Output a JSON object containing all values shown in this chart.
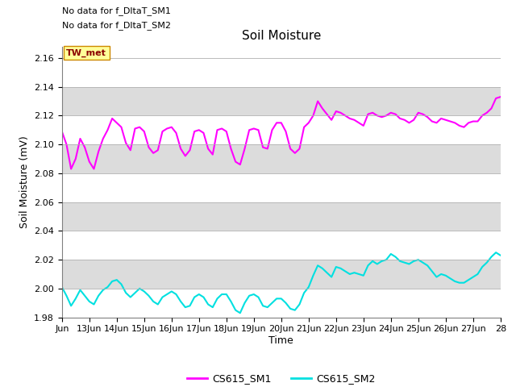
{
  "title": "Soil Moisture",
  "ylabel": "Soil Moisture (mV)",
  "xlabel": "Time",
  "ylim": [
    1.98,
    2.168
  ],
  "yticks": [
    1.98,
    2.0,
    2.02,
    2.04,
    2.06,
    2.08,
    2.1,
    2.12,
    2.14,
    2.16
  ],
  "xtick_labels": [
    "Jun",
    "13Jun",
    "14Jun",
    "15Jun",
    "16Jun",
    "17Jun",
    "18Jun",
    "19Jun",
    "20Jun",
    "21Jun",
    "22Jun",
    "23Jun",
    "24Jun",
    "25Jun",
    "26Jun",
    "27Jun",
    "28"
  ],
  "color_sm1": "#ff00ff",
  "color_sm2": "#00e0e0",
  "background_color": "#ffffff",
  "band_color": "#dcdcdc",
  "annotation1": "No data for f_DltaT_SM1",
  "annotation2": "No data for f_DltaT_SM2",
  "tw_met_label": "TW_met",
  "legend_sm1": "CS615_SM1",
  "legend_sm2": "CS615_SM2",
  "sm1_data": [
    2.109,
    2.1,
    2.083,
    2.09,
    2.104,
    2.098,
    2.088,
    2.083,
    2.095,
    2.104,
    2.11,
    2.118,
    2.115,
    2.112,
    2.101,
    2.096,
    2.111,
    2.112,
    2.109,
    2.098,
    2.094,
    2.096,
    2.109,
    2.111,
    2.112,
    2.108,
    2.097,
    2.092,
    2.096,
    2.109,
    2.11,
    2.108,
    2.097,
    2.093,
    2.11,
    2.111,
    2.109,
    2.097,
    2.088,
    2.086,
    2.097,
    2.11,
    2.111,
    2.11,
    2.098,
    2.097,
    2.11,
    2.115,
    2.115,
    2.109,
    2.097,
    2.094,
    2.097,
    2.112,
    2.115,
    2.12,
    2.13,
    2.125,
    2.121,
    2.117,
    2.123,
    2.122,
    2.12,
    2.118,
    2.117,
    2.115,
    2.113,
    2.121,
    2.122,
    2.12,
    2.119,
    2.12,
    2.122,
    2.121,
    2.118,
    2.117,
    2.115,
    2.117,
    2.122,
    2.121,
    2.119,
    2.116,
    2.115,
    2.118,
    2.117,
    2.116,
    2.115,
    2.113,
    2.112,
    2.115,
    2.116,
    2.116,
    2.12,
    2.122,
    2.125,
    2.132,
    2.133
  ],
  "sm2_data": [
    2.001,
    1.995,
    1.988,
    1.993,
    1.999,
    1.995,
    1.991,
    1.989,
    1.995,
    1.999,
    2.001,
    2.005,
    2.006,
    2.003,
    1.997,
    1.994,
    1.997,
    2.0,
    1.998,
    1.995,
    1.991,
    1.989,
    1.994,
    1.996,
    1.998,
    1.996,
    1.991,
    1.987,
    1.988,
    1.994,
    1.996,
    1.994,
    1.989,
    1.987,
    1.993,
    1.996,
    1.996,
    1.991,
    1.985,
    1.983,
    1.99,
    1.995,
    1.996,
    1.994,
    1.988,
    1.987,
    1.99,
    1.993,
    1.993,
    1.99,
    1.986,
    1.985,
    1.989,
    1.997,
    2.001,
    2.009,
    2.016,
    2.014,
    2.011,
    2.008,
    2.015,
    2.014,
    2.012,
    2.01,
    2.011,
    2.01,
    2.009,
    2.016,
    2.019,
    2.017,
    2.019,
    2.02,
    2.024,
    2.022,
    2.019,
    2.018,
    2.017,
    2.019,
    2.02,
    2.018,
    2.016,
    2.012,
    2.008,
    2.01,
    2.009,
    2.007,
    2.005,
    2.004,
    2.004,
    2.006,
    2.008,
    2.01,
    2.015,
    2.018,
    2.022,
    2.025,
    2.023
  ]
}
